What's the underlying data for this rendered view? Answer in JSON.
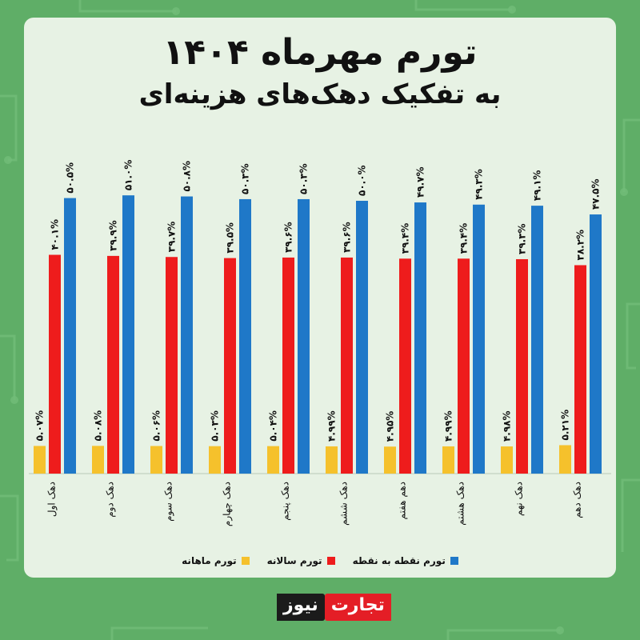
{
  "header": {
    "title": "تورم مهرماه ۱۴۰۴",
    "subtitle": "به تفکیک دهک‌های هزینه‌ای"
  },
  "colors": {
    "monthly": "#f5c12c",
    "annual": "#ee1c1c",
    "point": "#1f78c8"
  },
  "legend": {
    "point": "تورم نقطه به نقطه",
    "annual": "تورم سالانه",
    "monthly": "تورم ماهانه"
  },
  "logo": {
    "part1": "تجارت",
    "part2": "نیوز"
  },
  "chart_data": {
    "type": "bar",
    "title": "تورم مهرماه ۱۴۰۴",
    "subtitle": "به تفکیک دهک‌های هزینه‌ای",
    "categories": [
      "دهک اول",
      "دهک دوم",
      "دهک سوم",
      "دهک چهارم",
      "دهک پنجم",
      "دهک ششم",
      "دهم هفتم",
      "دهک هشتم",
      "دهک نهم",
      "دهک دهم"
    ],
    "series": [
      {
        "name": "تورم ماهانه",
        "values": [
          5.07,
          5.08,
          5.06,
          5.03,
          5.04,
          4.99,
          4.95,
          4.99,
          4.98,
          5.21
        ],
        "labels": [
          "۵.۰۷%",
          "۵.۰۸%",
          "۵.۰۶%",
          "۵.۰۳%",
          "۵.۰۴%",
          "۴.۹۹%",
          "۴.۹۵%",
          "۴.۹۹%",
          "۴.۹۸%",
          "۵.۲۱%"
        ]
      },
      {
        "name": "تورم سالانه",
        "values": [
          40.1,
          39.9,
          39.7,
          39.5,
          39.6,
          39.6,
          39.4,
          39.4,
          39.3,
          38.2
        ],
        "labels": [
          "۴۰.۱%",
          "۳۹.۹%",
          "۳۹.۷%",
          "۳۹.۵%",
          "۳۹.۶%",
          "۳۹.۶%",
          "۳۹.۴%",
          "۳۹.۴%",
          "۳۹.۳%",
          "۳۸.۲%"
        ]
      },
      {
        "name": "تورم نقطه به نقطه",
        "values": [
          50.5,
          51.0,
          50.8,
          50.3,
          50.3,
          50.0,
          49.7,
          49.3,
          49.1,
          47.5
        ],
        "labels": [
          "۵۰.۵%",
          "۵۱.۰%",
          "۵۰.۸%",
          "۵۰.۳%",
          "۵۰.۳%",
          "۵۰.۰%",
          "۴۹.۷%",
          "۴۹.۳%",
          "۴۹.۱%",
          "۴۷.۵%"
        ]
      }
    ],
    "grid": false,
    "legend": "bottom"
  }
}
